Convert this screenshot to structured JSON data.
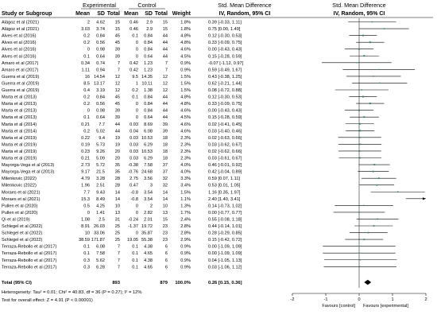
{
  "headers": {
    "study": "Study or Subgroup",
    "experimental": "Experimental",
    "control": "Control",
    "mean": "Mean",
    "sd": "SD",
    "total": "Total",
    "weight": "Weight",
    "smd_title": "Std. Mean Difference",
    "smd_sub": "IV, Random, 95% CI",
    "plot_title": "Std. Mean Difference",
    "plot_sub": "IV, Random, 95% CI"
  },
  "rows": [
    {
      "study": "Alägoz et al (2021)",
      "e_mean": "2",
      "e_sd": "4.62",
      "e_n": "15",
      "c_mean": "0.46",
      "c_sd": "2.9",
      "c_n": "15",
      "weight": "1.8%",
      "ci": "0.39 [-0.33, 1.11]"
    },
    {
      "study": "Alägoz et al (2021)",
      "e_mean": "3.03",
      "e_sd": "3.74",
      "e_n": "15",
      "c_mean": "0.46",
      "c_sd": "2.9",
      "c_n": "15",
      "weight": "1.8%",
      "ci": "0.75 [0.00, 1.49]"
    },
    {
      "study": "Alves et al (2016)",
      "e_mean": "0.2",
      "e_sd": "0.84",
      "e_n": "45",
      "c_mean": "0.1",
      "c_sd": "0.84",
      "c_n": "44",
      "weight": "4.8%",
      "ci": "0.12 [-0.30, 0.53]"
    },
    {
      "study": "Alves et al (2016)",
      "e_mean": "0.2",
      "e_sd": "0.56",
      "e_n": "45",
      "c_mean": "0",
      "c_sd": "0.84",
      "c_n": "44",
      "weight": "4.8%",
      "ci": "0.33 [-0.09, 0.75]"
    },
    {
      "study": "Alves et al (2016)",
      "e_mean": "0",
      "e_sd": "0.98",
      "e_n": "39",
      "c_mean": "0",
      "c_sd": "0.84",
      "c_n": "44",
      "weight": "4.6%",
      "ci": "0.00 [-0.43, 0.43]"
    },
    {
      "study": "Alves et al (2016)",
      "e_mean": "0.1",
      "e_sd": "0.64",
      "e_n": "39",
      "c_mean": "0",
      "c_sd": "0.64",
      "c_n": "44",
      "weight": "4.5%",
      "ci": "0.15 [-0.28, 0.59]"
    },
    {
      "study": "Amaro et al (2017)",
      "e_mean": "0.34",
      "e_sd": "0.74",
      "e_n": "7",
      "c_mean": "0.42",
      "c_sd": "1.23",
      "c_n": "7",
      "weight": "0.9%",
      "ci": "-0.07 [-1.12, 0.97]"
    },
    {
      "study": "Amaro et al (2017)",
      "e_mean": "1.11",
      "e_sd": "0.94",
      "e_n": "7",
      "c_mean": "0.42",
      "c_sd": "1.23",
      "c_n": "7",
      "weight": "0.9%",
      "ci": "0.59 [-0.49, 1.67]"
    },
    {
      "study": "Guerra et al (2019)",
      "e_mean": "16",
      "e_sd": "14.54",
      "e_n": "12",
      "c_mean": "9.5",
      "c_sd": "14.35",
      "c_n": "12",
      "weight": "1.5%",
      "ci": "0.43 [-0.38, 1.25]"
    },
    {
      "study": "Guerra et al (2019)",
      "e_mean": "8.5",
      "e_sd": "13.17",
      "e_n": "12",
      "c_mean": "1",
      "c_sd": "10.11",
      "c_n": "12",
      "weight": "1.5%",
      "ci": "0.62 [-0.21, 1.44]"
    },
    {
      "study": "Guerra et al (2019)",
      "e_mean": "0.4",
      "e_sd": "3.19",
      "e_n": "12",
      "c_mean": "0.2",
      "c_sd": "1.38",
      "c_n": "12",
      "weight": "1.5%",
      "ci": "0.08 [-0.72, 0.88]"
    },
    {
      "study": "Marta et al (2013)",
      "e_mean": "0.2",
      "e_sd": "0.84",
      "e_n": "45",
      "c_mean": "0.1",
      "c_sd": "0.84",
      "c_n": "44",
      "weight": "4.8%",
      "ci": "0.12 [-0.30, 0.53]"
    },
    {
      "study": "Marta et al (2013)",
      "e_mean": "0.2",
      "e_sd": "0.56",
      "e_n": "45",
      "c_mean": "0",
      "c_sd": "0.84",
      "c_n": "44",
      "weight": "4.8%",
      "ci": "0.33 [-0.09, 0.75]"
    },
    {
      "study": "Marta et al (2013)",
      "e_mean": "0",
      "e_sd": "0.98",
      "e_n": "39",
      "c_mean": "0",
      "c_sd": "0.84",
      "c_n": "44",
      "weight": "4.6%",
      "ci": "0.00 [-0.43, 0.43]"
    },
    {
      "study": "Marta et al (2013)",
      "e_mean": "0.1",
      "e_sd": "0.64",
      "e_n": "39",
      "c_mean": "0",
      "c_sd": "0.64",
      "c_n": "44",
      "weight": "4.5%",
      "ci": "0.15 [-0.28, 0.59]"
    },
    {
      "study": "Marta et al (2014)",
      "e_mean": "0.21",
      "e_sd": "7.7",
      "e_n": "44",
      "c_mean": "0.03",
      "c_sd": "8.69",
      "c_n": "39",
      "weight": "4.6%",
      "ci": "0.02 [-0.41, 0.45]"
    },
    {
      "study": "Marta et al (2014)",
      "e_mean": "0.2",
      "e_sd": "5.02",
      "e_n": "44",
      "c_mean": "0.04",
      "c_sd": "6.08",
      "c_n": "39",
      "weight": "4.6%",
      "ci": "0.03 [-0.40, 0.46]"
    },
    {
      "study": "Marta et al (2019)",
      "e_mean": "0.22",
      "e_sd": "9.4",
      "e_n": "19",
      "c_mean": "0.03",
      "c_sd": "10.53",
      "c_n": "18",
      "weight": "2.3%",
      "ci": "0.02 [-0.63, 0.66]"
    },
    {
      "study": "Marta et al (2019)",
      "e_mean": "0.19",
      "e_sd": "5.73",
      "e_n": "19",
      "c_mean": "0.03",
      "c_sd": "6.29",
      "c_n": "18",
      "weight": "2.3%",
      "ci": "0.03 [-0.62, 0.67]"
    },
    {
      "study": "Marta et al (2019)",
      "e_mean": "0.23",
      "e_sd": "9.26",
      "e_n": "20",
      "c_mean": "0.03",
      "c_sd": "10.53",
      "c_n": "18",
      "weight": "2.3%",
      "ci": "0.02 [-0.62, 0.66]"
    },
    {
      "study": "Marta et al (2019)",
      "e_mean": "0.21",
      "e_sd": "5.09",
      "e_n": "20",
      "c_mean": "0.03",
      "c_sd": "6.29",
      "c_n": "18",
      "weight": "2.3%",
      "ci": "0.03 [-0.61, 0.67]"
    },
    {
      "study": "Mayorga-Vega et al (2013)",
      "e_mean": "2.73",
      "e_sd": "5.72",
      "e_n": "35",
      "c_mean": "-0.38",
      "c_sd": "7.58",
      "c_n": "37",
      "weight": "4.0%",
      "ci": "0.46 [-0.01, 0.92]"
    },
    {
      "study": "Mayorga-Vega et al (2013)",
      "e_mean": "9.17",
      "e_sd": "21.5",
      "e_n": "35",
      "c_mean": "-0.76",
      "c_sd": "24.68",
      "c_n": "37",
      "weight": "4.0%",
      "ci": "0.42 [-0.04, 0.89]"
    },
    {
      "study": "Milenkovic (2022)",
      "e_mean": "4.79",
      "e_sd": "3.28",
      "e_n": "28",
      "c_mean": "2.75",
      "c_sd": "3.56",
      "c_n": "32",
      "weight": "3.3%",
      "ci": "0.59 [0.07, 1.11]"
    },
    {
      "study": "Milenkovic (2022)",
      "e_mean": "1.96",
      "e_sd": "2.51",
      "e_n": "28",
      "c_mean": "0.47",
      "c_sd": "3",
      "c_n": "32",
      "weight": "3.4%",
      "ci": "0.53 [0.01, 1.05]"
    },
    {
      "study": "Moraes et al (2021)",
      "e_mean": "7.7",
      "e_sd": "9.43",
      "e_n": "14",
      "c_mean": "-0.8",
      "c_sd": "3.54",
      "c_n": "14",
      "weight": "1.5%",
      "ci": "1.16 [0.35, 1.97]"
    },
    {
      "study": "Moraes et al (2021)",
      "e_mean": "15.3",
      "e_sd": "8.49",
      "e_n": "14",
      "c_mean": "-0.8",
      "c_sd": "3.54",
      "c_n": "14",
      "weight": "1.1%",
      "ci": "2.40 [1.40, 3.41]"
    },
    {
      "study": "Pullen et al (2020)",
      "e_mean": "0.5",
      "e_sd": "4.25",
      "e_n": "10",
      "c_mean": "0",
      "c_sd": "2",
      "c_n": "10",
      "weight": "1.3%",
      "ci": "0.14 [-0.73, 1.02]"
    },
    {
      "study": "Pullen et al (2020)",
      "e_mean": "0",
      "e_sd": "1.41",
      "e_n": "13",
      "c_mean": "0",
      "c_sd": "2.82",
      "c_n": "13",
      "weight": "1.7%",
      "ci": "0.00 [-0.77, 0.77]"
    },
    {
      "study": "Qi et al (2019)",
      "e_mean": "1.08",
      "e_sd": "2.5",
      "e_n": "31",
      "c_mean": "-0.24",
      "c_sd": "2.01",
      "c_n": "15",
      "weight": "2.4%",
      "ci": "0.55 [-0.08, 1.18]"
    },
    {
      "study": "Schlegel et al (2022)",
      "e_mean": "8.91",
      "e_sd": "26.03",
      "e_n": "25",
      "c_mean": "-1.37",
      "c_sd": "19.72",
      "c_n": "23",
      "weight": "2.8%",
      "ci": "0.44 [-0.14, 1.01]"
    },
    {
      "study": "Schlegel et al (2022)",
      "e_mean": "10",
      "e_sd": "33.06",
      "e_n": "25",
      "c_mean": "0",
      "c_sd": "35.87",
      "c_n": "23",
      "weight": "2.8%",
      "ci": "0.28 [-0.29, 0.85]"
    },
    {
      "study": "Schlegel et al (2022)",
      "e_mean": "38.59",
      "e_sd": "171.87",
      "e_n": "25",
      "c_mean": "19.05",
      "c_sd": "55.38",
      "c_n": "23",
      "weight": "2.9%",
      "ci": "0.15 [-0.42, 0.72]"
    },
    {
      "study": "Terraza-Rebollo et al (2017)",
      "e_mean": "0.1",
      "e_sd": "6.08",
      "e_n": "7",
      "c_mean": "0.1",
      "c_sd": "4.38",
      "c_n": "6",
      "weight": "0.9%",
      "ci": "0.00 [-1.09, 1.09]"
    },
    {
      "study": "Terraza-Rebollo et al (2017)",
      "e_mean": "0.1",
      "e_sd": "7.58",
      "e_n": "7",
      "c_mean": "0.1",
      "c_sd": "4.65",
      "c_n": "6",
      "weight": "0.9%",
      "ci": "0.00 [-1.09, 1.09]"
    },
    {
      "study": "Terraza-Rebollo et al (2017)",
      "e_mean": "0.3",
      "e_sd": "5.62",
      "e_n": "7",
      "c_mean": "0.1",
      "c_sd": "4.38",
      "c_n": "6",
      "weight": "0.9%",
      "ci": "0.04 [-1.05, 1.13]"
    },
    {
      "study": "Terraza-Rebollo et al (2017)",
      "e_mean": "0.3",
      "e_sd": "6.28",
      "e_n": "7",
      "c_mean": "0.1",
      "c_sd": "4.65",
      "c_n": "6",
      "weight": "0.9%",
      "ci": "0.03 [-1.06, 1.12]"
    }
  ],
  "total": {
    "label": "Total (95% CI)",
    "e_n": "893",
    "c_n": "879",
    "weight": "100.0%",
    "ci": "0.26 [0.15, 0.36]"
  },
  "notes": {
    "heterogeneity": "Heterogeneity: Tau² = 0.01; Chi² = 40.83, df = 36 (P = 0.27); I² = 12%",
    "overall": "Test for overall effect: Z = 4.91 (P < 0.00001)"
  },
  "favours": {
    "left": "Favours [control]",
    "right": "Favours [experimental]"
  },
  "chart_data": {
    "type": "forest",
    "xlim": [
      -2,
      2
    ],
    "ticks": [
      {
        "value": -2,
        "label": "-2"
      },
      {
        "value": -1,
        "label": "-1"
      },
      {
        "value": 0,
        "label": "0"
      },
      {
        "value": 1,
        "label": "1"
      },
      {
        "value": 2,
        "label": "2"
      }
    ],
    "null_line": 0,
    "marker_color": "#2e8b57",
    "diamond_color": "#000000",
    "estimates": [
      {
        "est": 0.39,
        "lo": -0.33,
        "hi": 1.11,
        "w": 1.8
      },
      {
        "est": 0.75,
        "lo": 0.0,
        "hi": 1.49,
        "w": 1.8
      },
      {
        "est": 0.12,
        "lo": -0.3,
        "hi": 0.53,
        "w": 4.8
      },
      {
        "est": 0.33,
        "lo": -0.09,
        "hi": 0.75,
        "w": 4.8
      },
      {
        "est": 0.0,
        "lo": -0.43,
        "hi": 0.43,
        "w": 4.6
      },
      {
        "est": 0.15,
        "lo": -0.28,
        "hi": 0.59,
        "w": 4.5
      },
      {
        "est": -0.07,
        "lo": -1.12,
        "hi": 0.97,
        "w": 0.9
      },
      {
        "est": 0.59,
        "lo": -0.49,
        "hi": 1.67,
        "w": 0.9
      },
      {
        "est": 0.43,
        "lo": -0.38,
        "hi": 1.25,
        "w": 1.5
      },
      {
        "est": 0.62,
        "lo": -0.21,
        "hi": 1.44,
        "w": 1.5
      },
      {
        "est": 0.08,
        "lo": -0.72,
        "hi": 0.88,
        "w": 1.5
      },
      {
        "est": 0.12,
        "lo": -0.3,
        "hi": 0.53,
        "w": 4.8
      },
      {
        "est": 0.33,
        "lo": -0.09,
        "hi": 0.75,
        "w": 4.8
      },
      {
        "est": 0.0,
        "lo": -0.43,
        "hi": 0.43,
        "w": 4.6
      },
      {
        "est": 0.15,
        "lo": -0.28,
        "hi": 0.59,
        "w": 4.5
      },
      {
        "est": 0.02,
        "lo": -0.41,
        "hi": 0.45,
        "w": 4.6
      },
      {
        "est": 0.03,
        "lo": -0.4,
        "hi": 0.46,
        "w": 4.6
      },
      {
        "est": 0.02,
        "lo": -0.63,
        "hi": 0.66,
        "w": 2.3
      },
      {
        "est": 0.03,
        "lo": -0.62,
        "hi": 0.67,
        "w": 2.3
      },
      {
        "est": 0.02,
        "lo": -0.62,
        "hi": 0.66,
        "w": 2.3
      },
      {
        "est": 0.03,
        "lo": -0.61,
        "hi": 0.67,
        "w": 2.3
      },
      {
        "est": 0.46,
        "lo": -0.01,
        "hi": 0.92,
        "w": 4.0
      },
      {
        "est": 0.42,
        "lo": -0.04,
        "hi": 0.89,
        "w": 4.0
      },
      {
        "est": 0.59,
        "lo": 0.07,
        "hi": 1.11,
        "w": 3.3
      },
      {
        "est": 0.53,
        "lo": 0.01,
        "hi": 1.05,
        "w": 3.4
      },
      {
        "est": 1.16,
        "lo": 0.35,
        "hi": 1.97,
        "w": 1.5
      },
      {
        "est": 2.4,
        "lo": 1.4,
        "hi": 3.41,
        "w": 1.1
      },
      {
        "est": 0.14,
        "lo": -0.73,
        "hi": 1.02,
        "w": 1.3
      },
      {
        "est": 0.0,
        "lo": -0.77,
        "hi": 0.77,
        "w": 1.7
      },
      {
        "est": 0.55,
        "lo": -0.08,
        "hi": 1.18,
        "w": 2.4
      },
      {
        "est": 0.44,
        "lo": -0.14,
        "hi": 1.01,
        "w": 2.8
      },
      {
        "est": 0.28,
        "lo": -0.29,
        "hi": 0.85,
        "w": 2.8
      },
      {
        "est": 0.15,
        "lo": -0.42,
        "hi": 0.72,
        "w": 2.9
      },
      {
        "est": 0.0,
        "lo": -1.09,
        "hi": 1.09,
        "w": 0.9
      },
      {
        "est": 0.0,
        "lo": -1.09,
        "hi": 1.09,
        "w": 0.9
      },
      {
        "est": 0.04,
        "lo": -1.05,
        "hi": 1.13,
        "w": 0.9
      },
      {
        "est": 0.03,
        "lo": -1.06,
        "hi": 1.12,
        "w": 0.9
      }
    ],
    "pooled": {
      "est": 0.26,
      "lo": 0.15,
      "hi": 0.36
    }
  }
}
